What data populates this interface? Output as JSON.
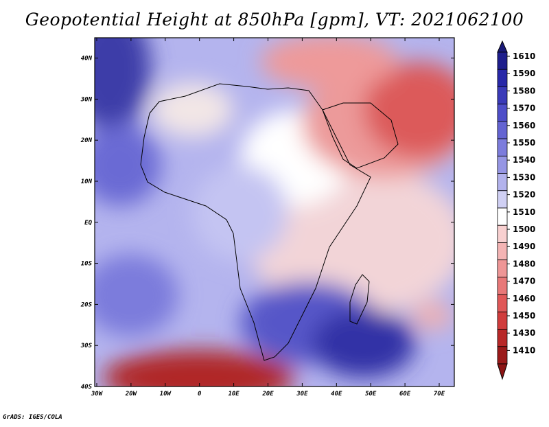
{
  "title": "Geopotential Height at 850hPa [gpm], VT: 2021062100",
  "credit": "GrADS: IGES/COLA",
  "map": {
    "lon_range": [
      -30,
      75
    ],
    "lat_range": [
      -40,
      45
    ],
    "lon_ticks": [
      "30W",
      "20W",
      "10W",
      "0",
      "10E",
      "20E",
      "30E",
      "40E",
      "50E",
      "60E",
      "70E"
    ],
    "lat_ticks": [
      "40S",
      "30S",
      "20S",
      "10S",
      "EQ",
      "10N",
      "20N",
      "30N",
      "40N"
    ]
  },
  "colorbar": {
    "levels": [
      "1610",
      "1590",
      "1580",
      "1570",
      "1560",
      "1550",
      "1540",
      "1530",
      "1520",
      "1510",
      "1500",
      "1490",
      "1480",
      "1470",
      "1460",
      "1450",
      "1430",
      "1410"
    ],
    "colors": [
      "#1e1e8c",
      "#2828a8",
      "#3a3ab8",
      "#4e4ec8",
      "#6464d2",
      "#7c7cdc",
      "#9696e4",
      "#b2b2ec",
      "#d0d0f4",
      "#ffffff",
      "#f8d0d0",
      "#f4b4b4",
      "#ee9696",
      "#e87878",
      "#e05858",
      "#d03c3c",
      "#b82828",
      "#9a1a1a"
    ],
    "end_top": "#1a1a78",
    "end_bottom": "#8c1414"
  }
}
